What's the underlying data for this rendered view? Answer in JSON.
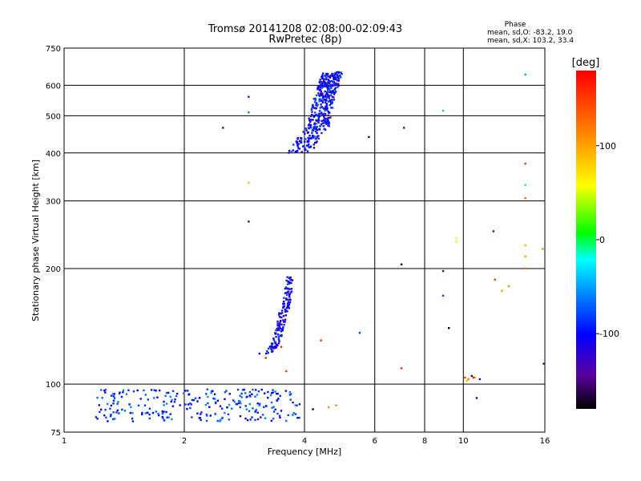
{
  "chart_data": {
    "type": "scatter",
    "title": "Tromsø 20141208 02:08:00-02:09:43",
    "subtitle": "RwPretec (8p)",
    "xlabel": "Frequency [MHz]",
    "ylabel": "Stationary phase Virtual Height [km]",
    "x_scale": "log",
    "y_scale": "log",
    "xlim": [
      1,
      16
    ],
    "ylim": [
      75,
      750
    ],
    "x_ticks": [
      1,
      2,
      4,
      6,
      8,
      10,
      16
    ],
    "y_ticks": [
      75,
      100,
      200,
      300,
      400,
      500,
      600,
      750
    ],
    "x_ticklabels": [
      "1",
      "2",
      "4",
      "6",
      "8",
      "10",
      "16"
    ],
    "y_ticklabels": [
      "75",
      "100",
      "200",
      "300",
      "400",
      "500",
      "600",
      "750"
    ],
    "grid": true,
    "stats": {
      "heading": "Phase",
      "line1": "mean, sd,O: -83.2, 19.0",
      "line2": "mean, sd,X: 103.2, 33.4"
    },
    "colorbar": {
      "label": "[deg]",
      "range": [
        -180,
        180
      ],
      "ticks": [
        100,
        0,
        -100
      ],
      "ticklabels": [
        "100",
        "0",
        "-100"
      ]
    },
    "series": [
      {
        "kind": "cluster",
        "x_range": [
          4.0,
          5.1
        ],
        "y_range": [
          400,
          650
        ],
        "phase": -100
      },
      {
        "kind": "cluster",
        "x_range": [
          3.0,
          3.7
        ],
        "y_range": [
          120,
          190
        ],
        "phase": -105
      },
      {
        "kind": "cluster",
        "x_range": [
          1.2,
          3.9
        ],
        "y_range": [
          80,
          97
        ],
        "phase": -85
      },
      {
        "kind": "points",
        "x": [
          10.1,
          10.3,
          10.5,
          10.7,
          11.0,
          10.2,
          10.6
        ],
        "y": [
          104,
          103,
          105,
          104,
          103,
          102,
          104
        ],
        "phase": [
          150,
          120,
          -160,
          100,
          -110,
          90,
          170
        ]
      },
      {
        "kind": "points",
        "x": [
          2.5,
          2.9,
          2.9,
          2.9,
          2.9,
          5.8,
          7.1,
          8.9,
          7.0,
          8.9,
          8.9,
          9.2,
          9.6,
          9.6,
          11.9,
          14.3,
          14.3,
          14.3,
          14.3,
          14.3,
          14.3,
          15.8,
          14.3,
          15.9,
          13.0,
          12.5,
          12.0,
          10.8,
          7.0,
          5.5,
          4.4,
          3.6,
          3.2,
          3.5,
          4.8,
          4.2,
          4.6
        ],
        "y": [
          465,
          560,
          510,
          335,
          265,
          440,
          465,
          515,
          205,
          197,
          170,
          140,
          240,
          235,
          250,
          640,
          375,
          330,
          305,
          230,
          200,
          225,
          215,
          113,
          180,
          175,
          187,
          92,
          110,
          136,
          130,
          108,
          117,
          125,
          88,
          86,
          87
        ],
        "phase": [
          -150,
          -90,
          -60,
          90,
          -150,
          -160,
          -140,
          -40,
          -170,
          -120,
          -80,
          -180,
          60,
          50,
          -90,
          -50,
          150,
          -10,
          130,
          90,
          130,
          110,
          100,
          -150,
          110,
          100,
          150,
          -160,
          160,
          -80,
          160,
          150,
          160,
          160,
          110,
          -170,
          110
        ]
      }
    ]
  }
}
